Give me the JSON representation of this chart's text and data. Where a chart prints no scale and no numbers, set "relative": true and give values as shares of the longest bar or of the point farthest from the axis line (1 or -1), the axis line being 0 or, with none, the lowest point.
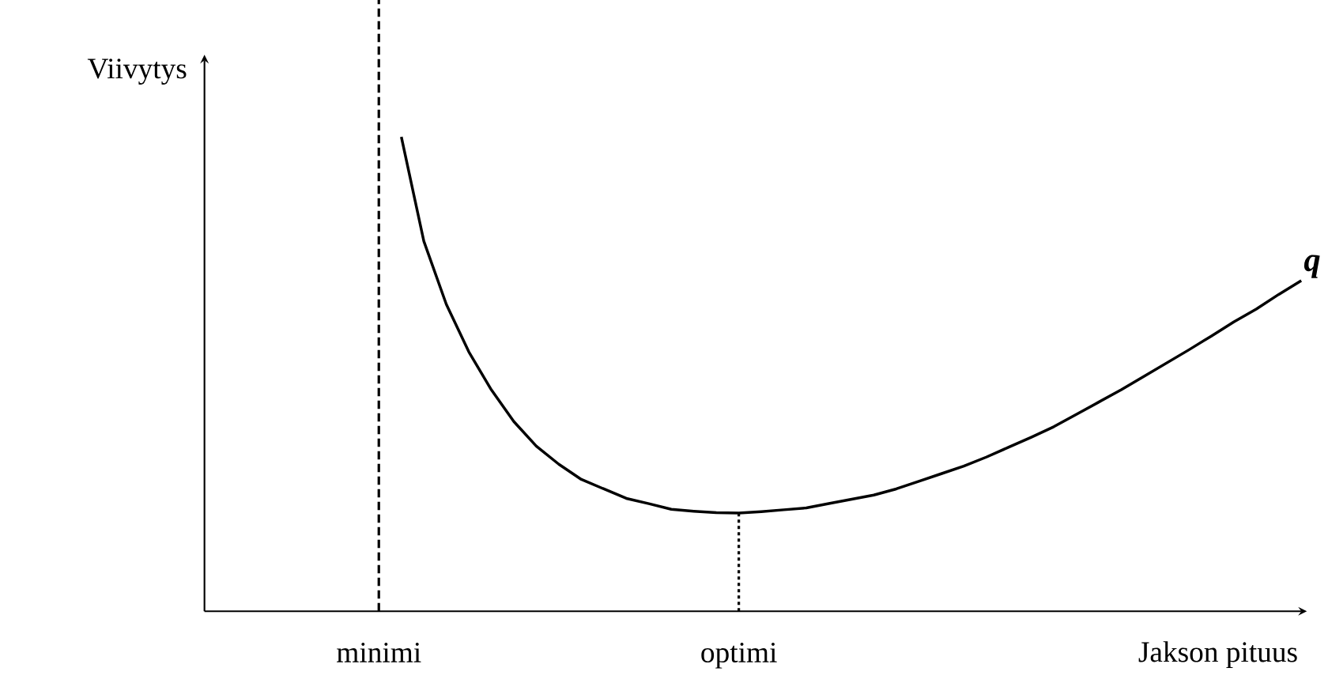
{
  "chart_data": {
    "type": "line",
    "relative": true,
    "xlabel": "Jakson pituus",
    "ylabel": "Viivytys",
    "marker": "none",
    "categories": [
      null,
      null,
      null,
      null,
      null,
      null,
      null,
      "minimi",
      null,
      null,
      null,
      null,
      null,
      null,
      null,
      null,
      null,
      null,
      null,
      null,
      null,
      null,
      null,
      "optimi",
      null,
      null,
      null,
      null,
      null,
      null,
      null,
      null,
      null,
      null,
      null,
      null,
      null,
      null,
      null,
      null,
      null,
      null,
      null,
      null,
      null,
      null,
      null,
      null,
      null
    ],
    "series": [
      {
        "name": "q",
        "color": "#000000",
        "line_style": "solid",
        "values": [
          null,
          null,
          null,
          null,
          null,
          null,
          null,
          null,
          1.0,
          0.78,
          0.647,
          0.547,
          0.467,
          0.4,
          0.348,
          0.31,
          0.278,
          0.258,
          0.238,
          0.227,
          0.215,
          0.211,
          0.208,
          0.207,
          0.21,
          0.214,
          0.218,
          0.227,
          0.236,
          0.245,
          0.258,
          0.274,
          0.29,
          0.306,
          0.325,
          0.346,
          0.367,
          0.389,
          0.415,
          0.441,
          0.467,
          0.495,
          0.523,
          0.551,
          0.58,
          0.61,
          0.637,
          0.668,
          0.697
        ]
      }
    ],
    "ref_lines": [
      {
        "axis": "x",
        "value": "minimi",
        "line_style": "dashed",
        "color": "#000000"
      },
      {
        "axis": "x",
        "value": "optimi",
        "line_style": "dotted",
        "color": "#000000"
      }
    ]
  }
}
